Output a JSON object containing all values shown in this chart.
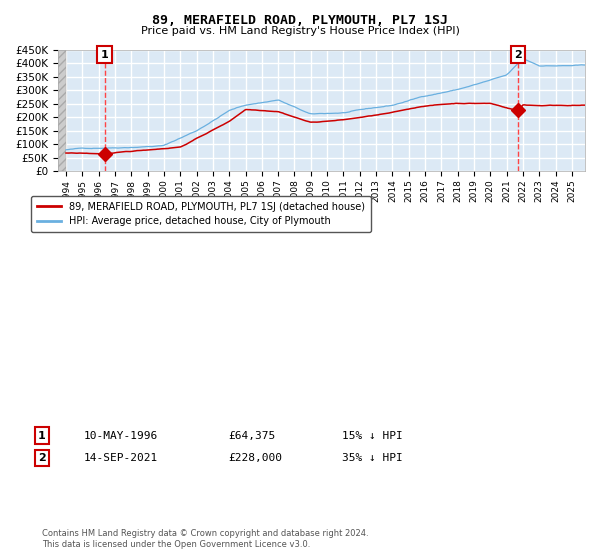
{
  "title": "89, MERAFIELD ROAD, PLYMOUTH, PL7 1SJ",
  "subtitle": "Price paid vs. HM Land Registry's House Price Index (HPI)",
  "legend_line1": "89, MERAFIELD ROAD, PLYMOUTH, PL7 1SJ (detached house)",
  "legend_line2": "HPI: Average price, detached house, City of Plymouth",
  "annotation1_label": "1",
  "annotation1_date": "10-MAY-1996",
  "annotation1_price": "£64,375",
  "annotation1_hpi": "15% ↓ HPI",
  "annotation2_label": "2",
  "annotation2_date": "14-SEP-2021",
  "annotation2_price": "£228,000",
  "annotation2_hpi": "35% ↓ HPI",
  "footer": "Contains HM Land Registry data © Crown copyright and database right 2024.\nThis data is licensed under the Open Government Licence v3.0.",
  "background_color": "#dce9f5",
  "grid_color": "#ffffff",
  "hpi_line_color": "#6ab0e0",
  "price_line_color": "#cc0000",
  "dashed_line_color": "#ff4444",
  "marker_color": "#cc0000",
  "ylim": [
    0,
    450000
  ],
  "yticks": [
    0,
    50000,
    100000,
    150000,
    200000,
    250000,
    300000,
    350000,
    400000,
    450000
  ],
  "x_start_year": 1994,
  "x_end_year": 2025,
  "sale1_year": 1996.36,
  "sale1_price": 64375,
  "sale2_year": 2021.71,
  "sale2_price": 228000,
  "hpi_key_years": [
    1994,
    1995,
    1997,
    2000,
    2002,
    2004,
    2005,
    2007,
    2009,
    2011,
    2014,
    2016,
    2018,
    2021,
    2022,
    2023,
    2025
  ],
  "hpi_key_vals": [
    80000,
    85000,
    90000,
    100000,
    155000,
    230000,
    250000,
    270000,
    215000,
    220000,
    245000,
    280000,
    305000,
    355000,
    415000,
    390000,
    390000
  ],
  "price_key_years": [
    1994,
    1996.36,
    1998,
    2001,
    2004,
    2005,
    2007,
    2009,
    2011,
    2014,
    2016,
    2018,
    2020,
    2021.71,
    2022,
    2023,
    2025
  ],
  "price_key_vals": [
    68000,
    64375,
    72000,
    90000,
    185000,
    230000,
    225000,
    185000,
    195000,
    220000,
    245000,
    255000,
    255000,
    228000,
    250000,
    248000,
    250000
  ]
}
